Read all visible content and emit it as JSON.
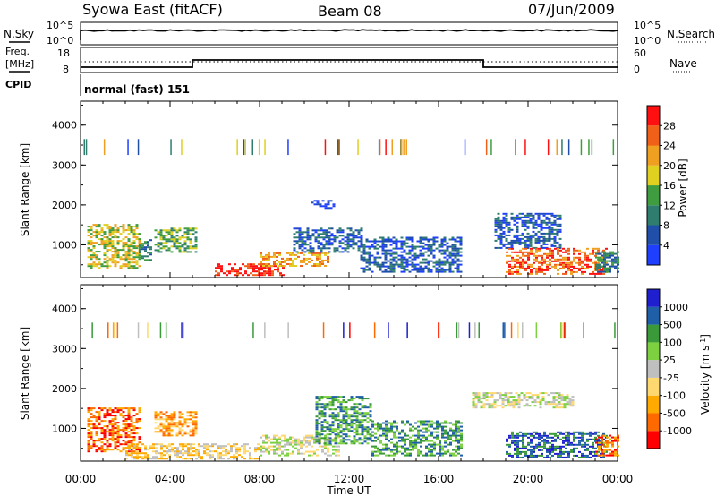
{
  "header": {
    "station": "Syowa East (fitACF)",
    "beam": "Beam 08",
    "date": "07/Jun/2009"
  },
  "noise_panel": {
    "left_label": "N.Sky",
    "right_label": "N.Search",
    "left_ticks": [
      "10^5",
      "10^0"
    ],
    "right_ticks": [
      "10^5",
      "10^0"
    ]
  },
  "freq_panel": {
    "left_label_1": "Freq.",
    "left_label_2": "[MHz]",
    "right_label": "Nave",
    "left_ticks": [
      "18",
      "8"
    ],
    "right_ticks": [
      "60",
      "0"
    ]
  },
  "cpid": {
    "label": "CPID",
    "value": "normal (fast) 151"
  },
  "colors": {
    "power": [
      "#1f3fff",
      "#1f4fa8",
      "#2e7d6f",
      "#3f9d3f",
      "#e0d020",
      "#f0a020",
      "#f06018",
      "#ff1010"
    ],
    "velocity": [
      "#ff0000",
      "#ff6a00",
      "#ffaa00",
      "#ffd870",
      "#bfbfbf",
      "#7dd040",
      "#3a9a3a",
      "#1f5fa8",
      "#1f1fd0"
    ]
  },
  "chart_data": [
    {
      "type": "heatmap",
      "title": "Power",
      "ylabel": "Slant Range [km]",
      "colorbar_label": "Power [dB]",
      "colorbar_ticks": [
        "4",
        "8",
        "12",
        "16",
        "20",
        "24",
        "28"
      ],
      "ylim": [
        180,
        4600
      ],
      "yticks": [
        "1000",
        "2000",
        "3000",
        "4000"
      ],
      "xticks": [
        "00:00",
        "04:00",
        "08:00",
        "12:00",
        "16:00",
        "20:00",
        "00:00"
      ],
      "regions": [
        {
          "t": [
            0.3,
            2.6
          ],
          "r": [
            400,
            1500
          ],
          "level": 4
        },
        {
          "t": [
            2.6,
            3.2
          ],
          "r": [
            600,
            1100
          ],
          "level": 2
        },
        {
          "t": [
            3.3,
            5.2
          ],
          "r": [
            800,
            1400
          ],
          "level": 3
        },
        {
          "t": [
            6.0,
            9.0
          ],
          "r": [
            220,
            500
          ],
          "level": 7
        },
        {
          "t": [
            8.0,
            11.0
          ],
          "r": [
            450,
            800
          ],
          "level": 5
        },
        {
          "t": [
            9.5,
            12.5
          ],
          "r": [
            800,
            1400
          ],
          "level": 1
        },
        {
          "t": [
            10.3,
            11.3
          ],
          "r": [
            1900,
            2100
          ],
          "level": 0
        },
        {
          "t": [
            12.5,
            17.0
          ],
          "r": [
            300,
            1200
          ],
          "level": 1
        },
        {
          "t": [
            18.5,
            21.5
          ],
          "r": [
            900,
            1800
          ],
          "level": 1
        },
        {
          "t": [
            19.0,
            23.5
          ],
          "r": [
            250,
            900
          ],
          "level": 6
        },
        {
          "t": [
            23.0,
            24.0
          ],
          "r": [
            300,
            800
          ],
          "level": 2
        }
      ]
    },
    {
      "type": "heatmap",
      "title": "Velocity",
      "ylabel": "Slant Range [km]",
      "colorbar_label": "Velocity [m s^-1]",
      "colorbar_ticks": [
        "1000",
        "500",
        "100",
        "25",
        "-25",
        "-100",
        "-500",
        "-1000"
      ],
      "ylim": [
        180,
        4600
      ],
      "yticks": [
        "1000",
        "2000",
        "3000",
        "4000"
      ],
      "xticks": [
        "00:00",
        "04:00",
        "08:00",
        "12:00",
        "16:00",
        "20:00",
        "00:00"
      ],
      "xlabel": "Time UT",
      "regions": [
        {
          "t": [
            0.3,
            2.6
          ],
          "r": [
            400,
            1500
          ],
          "level": 1
        },
        {
          "t": [
            3.3,
            5.2
          ],
          "r": [
            800,
            1400
          ],
          "level": 2
        },
        {
          "t": [
            2.0,
            8.0
          ],
          "r": [
            220,
            600
          ],
          "level": 3
        },
        {
          "t": [
            8.0,
            11.5
          ],
          "r": [
            300,
            800
          ],
          "level": 4
        },
        {
          "t": [
            10.5,
            13.0
          ],
          "r": [
            600,
            1800
          ],
          "level": 6
        },
        {
          "t": [
            13.0,
            17.0
          ],
          "r": [
            300,
            1200
          ],
          "level": 6
        },
        {
          "t": [
            17.5,
            22.0
          ],
          "r": [
            1500,
            1900
          ],
          "level": 4
        },
        {
          "t": [
            19.0,
            23.5
          ],
          "r": [
            250,
            900
          ],
          "level": 7
        },
        {
          "t": [
            23.0,
            24.0
          ],
          "r": [
            300,
            800
          ],
          "level": 1
        }
      ]
    }
  ]
}
